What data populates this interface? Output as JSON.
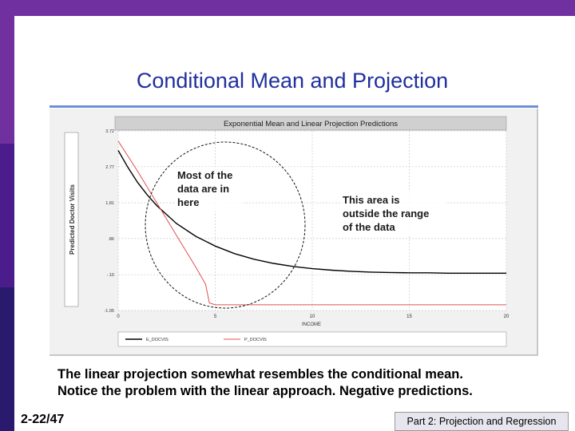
{
  "slide": {
    "title": "Conditional Mean and Projection",
    "caption_line1": "The linear projection somewhat resembles the conditional mean.",
    "caption_line2": "Notice the problem with the linear approach. Negative predictions.",
    "slide_number": "2-22/47",
    "footer": "Part 2: Projection and Regression"
  },
  "colors": {
    "accent_bar": "#7030a0",
    "title_text": "#1f2f9e",
    "exp_mean_series": "#000000",
    "linear_projection_series": "#e05050"
  },
  "chart_data": {
    "type": "line",
    "title": "Exponential Mean and Linear Projection Predictions",
    "xlabel": "INCOME",
    "ylabel": "Predicted Doctor Visits",
    "x_ticks": [
      "0",
      "5",
      "10",
      "15",
      "20"
    ],
    "y_ticks": [
      "3.72",
      "2.77",
      "1.81",
      ".86",
      "-.10",
      "-1.05"
    ],
    "x_tick_values": [
      0,
      5,
      10,
      15,
      20
    ],
    "y_tick_values": [
      3.72,
      2.77,
      1.81,
      0.86,
      -0.1,
      -1.05
    ],
    "xlim": [
      0,
      20
    ],
    "ylim": [
      -1.05,
      3.72
    ],
    "grid": true,
    "legend_position": "bottom",
    "series": [
      {
        "name": "E_DOCVIS",
        "x": [
          0,
          0.5,
          1,
          1.5,
          2,
          3,
          4,
          5,
          6,
          7,
          8,
          9,
          10,
          11,
          12,
          13,
          14,
          15,
          16,
          17,
          18,
          19,
          20
        ],
        "y": [
          3.2,
          2.75,
          2.35,
          2.02,
          1.73,
          1.26,
          0.92,
          0.66,
          0.46,
          0.31,
          0.2,
          0.12,
          0.06,
          0.02,
          -0.01,
          -0.03,
          -0.04,
          -0.05,
          -0.05,
          -0.06,
          -0.06,
          -0.06,
          -0.06
        ]
      },
      {
        "name": "P_DOCVIS",
        "x": [
          0,
          1,
          2,
          3,
          4,
          4.5,
          4.7,
          5,
          10,
          15,
          20
        ],
        "y": [
          3.45,
          2.65,
          1.8,
          0.95,
          0.1,
          -0.35,
          -0.85,
          -0.9,
          -0.9,
          -0.9,
          -0.9
        ]
      }
    ],
    "annotations": [
      {
        "text_lines": [
          "Most of the",
          "data are in",
          "here"
        ]
      },
      {
        "text_lines": [
          "This area is",
          "outside the range",
          "of the data"
        ]
      }
    ]
  }
}
